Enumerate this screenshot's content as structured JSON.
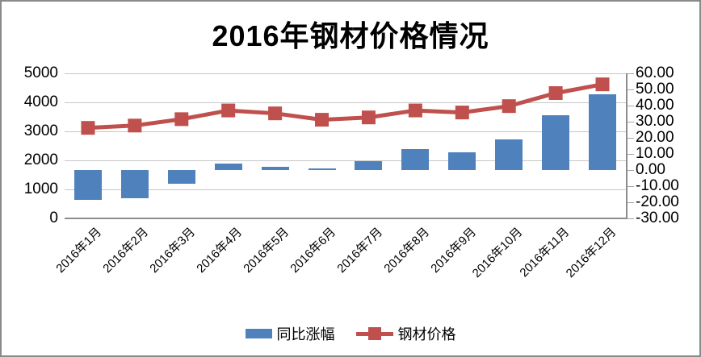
{
  "chart_data": {
    "type": "combo-bar-line",
    "title": "2016年钢材价格情况",
    "categories": [
      "2016年1月",
      "2016年2月",
      "2016年3月",
      "2016年4月",
      "2016年5月",
      "2016年6月",
      "2016年7月",
      "2016年8月",
      "2016年9月",
      "2016年10月",
      "2016年11月",
      "2016年12月"
    ],
    "series": [
      {
        "name": "同比涨幅",
        "type": "bar",
        "axis": "right",
        "color": "#4f81bd",
        "values": [
          -18.6,
          -17.7,
          -8.5,
          4.2,
          2.2,
          1.2,
          5.3,
          13.2,
          11.2,
          18.8,
          34.0,
          47.0
        ]
      },
      {
        "name": "钢材价格",
        "type": "line",
        "axis": "left",
        "color": "#c0504d",
        "values": [
          3120,
          3200,
          3420,
          3720,
          3620,
          3400,
          3480,
          3720,
          3650,
          3870,
          4320,
          4620
        ]
      }
    ],
    "left_axis": {
      "min": 0,
      "max": 5000,
      "step": 1000,
      "tick_labels": [
        "0",
        "1000",
        "2000",
        "3000",
        "4000",
        "5000"
      ]
    },
    "right_axis": {
      "min": -30,
      "max": 60,
      "step": 10,
      "tick_labels": [
        "-30.00",
        "-20.00",
        "-10.00",
        "0.00",
        "10.00",
        "20.00",
        "30.00",
        "40.00",
        "50.00",
        "60.00"
      ]
    },
    "legend_position": "bottom",
    "grid": true
  },
  "colors": {
    "bar": "#4f81bd",
    "line": "#c0504d",
    "grid": "#c6c6c6",
    "axis_line": "#8c8c8c",
    "frame_border": "#8a8a8a",
    "text": "#000000"
  }
}
